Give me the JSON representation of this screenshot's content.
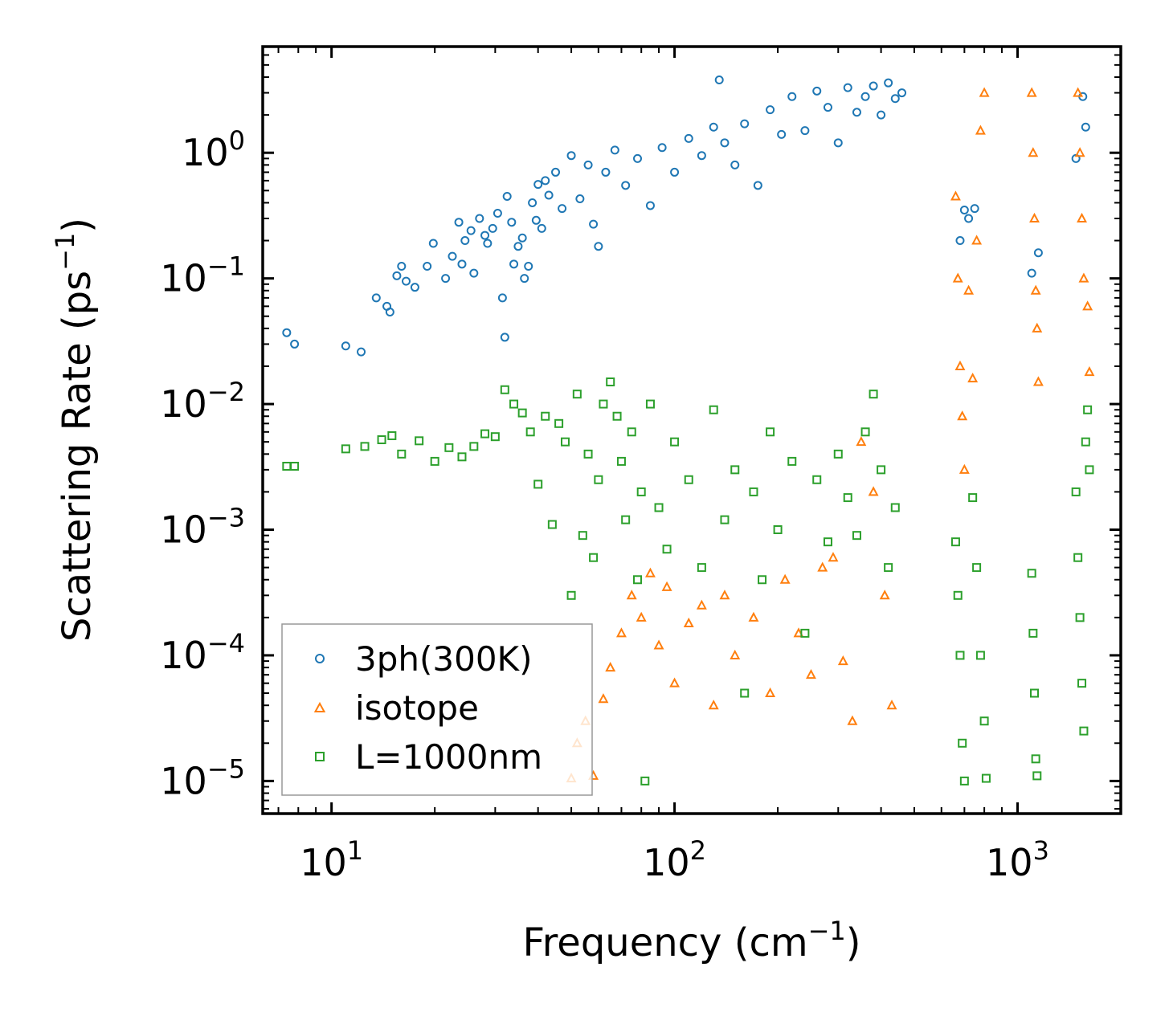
{
  "chart_data": {
    "type": "scatter",
    "title": "",
    "xlabel": "Frequency (cm",
    "xlabel_sup": "−1",
    "xlabel_tail": ")",
    "ylabel": "Scattering Rate (ps",
    "ylabel_sup": "−1",
    "ylabel_tail": ")",
    "xscale": "log",
    "yscale": "log",
    "xlim": [
      6.3,
      2000
    ],
    "ylim": [
      5.5e-06,
      7
    ],
    "x_ticks": [
      {
        "value": 10,
        "base": "10",
        "exp": "1"
      },
      {
        "value": 100,
        "base": "10",
        "exp": "2"
      },
      {
        "value": 1000,
        "base": "10",
        "exp": "3"
      }
    ],
    "y_ticks": [
      {
        "value": 1,
        "base": "10",
        "exp": "0"
      },
      {
        "value": 0.1,
        "base": "10",
        "exp": "−1"
      },
      {
        "value": 0.01,
        "base": "10",
        "exp": "−2"
      },
      {
        "value": 0.001,
        "base": "10",
        "exp": "−3"
      },
      {
        "value": 0.0001,
        "base": "10",
        "exp": "−4"
      },
      {
        "value": 1e-05,
        "base": "10",
        "exp": "−5"
      }
    ],
    "legend_position": "lower-left",
    "series": [
      {
        "name": "3ph(300K)",
        "color": "#1f77b4",
        "marker": "circle",
        "points": [
          [
            7.4,
            0.037
          ],
          [
            7.8,
            0.03
          ],
          [
            11.0,
            0.029
          ],
          [
            12.2,
            0.026
          ],
          [
            13.5,
            0.07
          ],
          [
            14.5,
            0.06
          ],
          [
            14.8,
            0.054
          ],
          [
            15.5,
            0.105
          ],
          [
            16.0,
            0.125
          ],
          [
            16.5,
            0.095
          ],
          [
            17.5,
            0.085
          ],
          [
            19.0,
            0.125
          ],
          [
            19.8,
            0.19
          ],
          [
            21.5,
            0.1
          ],
          [
            22.5,
            0.15
          ],
          [
            23.5,
            0.28
          ],
          [
            24.0,
            0.13
          ],
          [
            24.5,
            0.2
          ],
          [
            25.5,
            0.24
          ],
          [
            26.0,
            0.11
          ],
          [
            27.0,
            0.3
          ],
          [
            28.0,
            0.22
          ],
          [
            28.5,
            0.19
          ],
          [
            29.5,
            0.25
          ],
          [
            30.5,
            0.33
          ],
          [
            31.5,
            0.07
          ],
          [
            32.0,
            0.034
          ],
          [
            32.5,
            0.45
          ],
          [
            33.5,
            0.28
          ],
          [
            34.0,
            0.13
          ],
          [
            35.0,
            0.18
          ],
          [
            36.0,
            0.21
          ],
          [
            36.5,
            0.1
          ],
          [
            37.5,
            0.125
          ],
          [
            38.5,
            0.4
          ],
          [
            39.5,
            0.29
          ],
          [
            40.0,
            0.56
          ],
          [
            41.0,
            0.25
          ],
          [
            42.0,
            0.6
          ],
          [
            43.0,
            0.46
          ],
          [
            45.0,
            0.7
          ],
          [
            47.0,
            0.36
          ],
          [
            50.0,
            0.95
          ],
          [
            53.0,
            0.43
          ],
          [
            56.0,
            0.8
          ],
          [
            58.0,
            0.27
          ],
          [
            60.0,
            0.18
          ],
          [
            63.0,
            0.7
          ],
          [
            67.0,
            1.05
          ],
          [
            72.0,
            0.55
          ],
          [
            78.0,
            0.9
          ],
          [
            85.0,
            0.38
          ],
          [
            92.0,
            1.1
          ],
          [
            100.0,
            0.7
          ],
          [
            110.0,
            1.3
          ],
          [
            120.0,
            0.95
          ],
          [
            130.0,
            1.6
          ],
          [
            135.0,
            3.8
          ],
          [
            140.0,
            1.2
          ],
          [
            150.0,
            0.8
          ],
          [
            160.0,
            1.7
          ],
          [
            175.0,
            0.55
          ],
          [
            190.0,
            2.2
          ],
          [
            205.0,
            1.4
          ],
          [
            220.0,
            2.8
          ],
          [
            240.0,
            1.5
          ],
          [
            260.0,
            3.1
          ],
          [
            280.0,
            2.3
          ],
          [
            300.0,
            1.2
          ],
          [
            320.0,
            3.3
          ],
          [
            340.0,
            2.1
          ],
          [
            360.0,
            2.8
          ],
          [
            380.0,
            3.4
          ],
          [
            400.0,
            2.0
          ],
          [
            420.0,
            3.6
          ],
          [
            440.0,
            2.7
          ],
          [
            460.0,
            3.0
          ],
          [
            680.0,
            0.2
          ],
          [
            700.0,
            0.35
          ],
          [
            720.0,
            0.3
          ],
          [
            750.0,
            0.36
          ],
          [
            1100.0,
            0.11
          ],
          [
            1150.0,
            0.16
          ],
          [
            1480.0,
            0.9
          ],
          [
            1550.0,
            2.8
          ],
          [
            1580.0,
            1.6
          ]
        ]
      },
      {
        "name": "isotope",
        "color": "#ff7f0e",
        "marker": "triangle",
        "points": [
          [
            50.0,
            1.05e-05
          ],
          [
            52.0,
            2e-05
          ],
          [
            55.0,
            3e-05
          ],
          [
            58.0,
            1.1e-05
          ],
          [
            62.0,
            4.5e-05
          ],
          [
            65.0,
            8e-05
          ],
          [
            70.0,
            0.00015
          ],
          [
            75.0,
            0.0003
          ],
          [
            80.0,
            0.0002
          ],
          [
            85.0,
            0.00045
          ],
          [
            90.0,
            0.00012
          ],
          [
            95.0,
            0.00035
          ],
          [
            100.0,
            6e-05
          ],
          [
            110.0,
            0.00018
          ],
          [
            120.0,
            0.00025
          ],
          [
            130.0,
            4e-05
          ],
          [
            140.0,
            0.0003
          ],
          [
            150.0,
            0.0001
          ],
          [
            170.0,
            0.0002
          ],
          [
            190.0,
            5e-05
          ],
          [
            210.0,
            0.0004
          ],
          [
            230.0,
            0.00015
          ],
          [
            250.0,
            7e-05
          ],
          [
            270.0,
            0.0005
          ],
          [
            290.0,
            0.0006
          ],
          [
            310.0,
            9e-05
          ],
          [
            330.0,
            3e-05
          ],
          [
            350.0,
            0.005
          ],
          [
            380.0,
            0.002
          ],
          [
            410.0,
            0.0003
          ],
          [
            430.0,
            4e-05
          ],
          [
            660.0,
            0.45
          ],
          [
            670.0,
            0.1
          ],
          [
            680.0,
            0.02
          ],
          [
            690.0,
            0.008
          ],
          [
            700.0,
            0.003
          ],
          [
            720.0,
            0.08
          ],
          [
            740.0,
            0.016
          ],
          [
            760.0,
            0.2
          ],
          [
            780.0,
            1.5
          ],
          [
            800.0,
            3.0
          ],
          [
            1100.0,
            3.0
          ],
          [
            1110.0,
            1.0
          ],
          [
            1120.0,
            0.3
          ],
          [
            1130.0,
            0.08
          ],
          [
            1140.0,
            0.04
          ],
          [
            1150.0,
            0.015
          ],
          [
            1500.0,
            3.0
          ],
          [
            1520.0,
            1.0
          ],
          [
            1540.0,
            0.3
          ],
          [
            1560.0,
            0.1
          ],
          [
            1600.0,
            0.06
          ],
          [
            1620.0,
            0.018
          ]
        ]
      },
      {
        "name": "L=1000nm",
        "color": "#2ca02c",
        "marker": "square",
        "points": [
          [
            7.4,
            0.0032
          ],
          [
            7.8,
            0.0032
          ],
          [
            11.0,
            0.0044
          ],
          [
            12.5,
            0.0046
          ],
          [
            14.0,
            0.0052
          ],
          [
            15.0,
            0.0056
          ],
          [
            16.0,
            0.004
          ],
          [
            18.0,
            0.0051
          ],
          [
            20.0,
            0.0035
          ],
          [
            22.0,
            0.0045
          ],
          [
            24.0,
            0.0038
          ],
          [
            26.0,
            0.0046
          ],
          [
            28.0,
            0.0058
          ],
          [
            30.0,
            0.0055
          ],
          [
            32.0,
            0.013
          ],
          [
            34.0,
            0.01
          ],
          [
            36.0,
            0.0085
          ],
          [
            38.0,
            0.006
          ],
          [
            40.0,
            0.0023
          ],
          [
            42.0,
            0.008
          ],
          [
            44.0,
            0.0011
          ],
          [
            46.0,
            0.007
          ],
          [
            48.0,
            0.005
          ],
          [
            50.0,
            0.0003
          ],
          [
            52.0,
            0.012
          ],
          [
            54.0,
            0.0009
          ],
          [
            56.0,
            0.004
          ],
          [
            58.0,
            0.0006
          ],
          [
            60.0,
            0.0025
          ],
          [
            62.0,
            0.01
          ],
          [
            65.0,
            0.015
          ],
          [
            68.0,
            0.008
          ],
          [
            70.0,
            0.0035
          ],
          [
            72.0,
            0.0012
          ],
          [
            75.0,
            0.006
          ],
          [
            78.0,
            0.0004
          ],
          [
            80.0,
            0.002
          ],
          [
            82.0,
            1e-05
          ],
          [
            85.0,
            0.01
          ],
          [
            90.0,
            0.0015
          ],
          [
            95.0,
            0.0007
          ],
          [
            100.0,
            0.005
          ],
          [
            110.0,
            0.0025
          ],
          [
            120.0,
            0.0005
          ],
          [
            130.0,
            0.009
          ],
          [
            140.0,
            0.0012
          ],
          [
            150.0,
            0.003
          ],
          [
            160.0,
            5e-05
          ],
          [
            170.0,
            0.002
          ],
          [
            180.0,
            0.0004
          ],
          [
            190.0,
            0.006
          ],
          [
            200.0,
            0.001
          ],
          [
            220.0,
            0.0035
          ],
          [
            240.0,
            0.00015
          ],
          [
            260.0,
            0.0025
          ],
          [
            280.0,
            0.0008
          ],
          [
            300.0,
            0.004
          ],
          [
            320.0,
            0.0018
          ],
          [
            340.0,
            0.0009
          ],
          [
            360.0,
            0.006
          ],
          [
            380.0,
            0.012
          ],
          [
            400.0,
            0.003
          ],
          [
            420.0,
            0.0005
          ],
          [
            440.0,
            0.0015
          ],
          [
            660.0,
            0.0008
          ],
          [
            670.0,
            0.0003
          ],
          [
            680.0,
            0.0001
          ],
          [
            690.0,
            2e-05
          ],
          [
            700.0,
            1e-05
          ],
          [
            740.0,
            0.0018
          ],
          [
            760.0,
            0.0005
          ],
          [
            780.0,
            0.0001
          ],
          [
            800.0,
            3e-05
          ],
          [
            810.0,
            1.05e-05
          ],
          [
            1100.0,
            0.00045
          ],
          [
            1110.0,
            0.00015
          ],
          [
            1120.0,
            5e-05
          ],
          [
            1130.0,
            1.5e-05
          ],
          [
            1140.0,
            1.1e-05
          ],
          [
            1480.0,
            0.002
          ],
          [
            1500.0,
            0.0006
          ],
          [
            1520.0,
            0.0002
          ],
          [
            1540.0,
            6e-05
          ],
          [
            1560.0,
            2.5e-05
          ],
          [
            1580.0,
            0.005
          ],
          [
            1600.0,
            0.009
          ],
          [
            1620.0,
            0.003
          ]
        ]
      }
    ]
  }
}
